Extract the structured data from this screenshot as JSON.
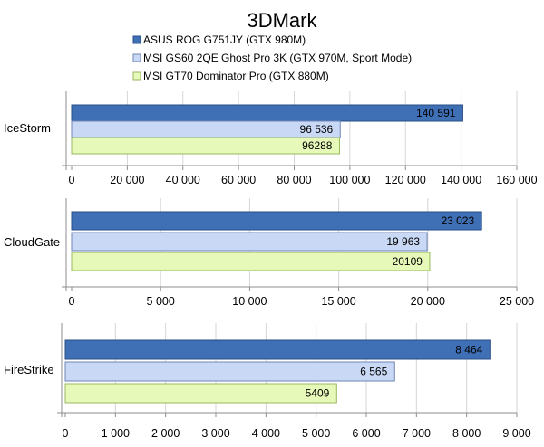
{
  "chart_data": {
    "type": "bar",
    "orientation": "horizontal",
    "title": "3DMark",
    "legend": {
      "placement": "top",
      "entries": [
        {
          "name": "ASUS ROG G751JY (GTX 980M)",
          "color": "#3f6fb5"
        },
        {
          "name": "MSI GS60 2QE Ghost Pro 3K (GTX 970M, Sport Mode)",
          "color": "#c9d9f5"
        },
        {
          "name": "MSI GT70 Dominator Pro (GTX 880M)",
          "color": "#e6f9b8"
        }
      ]
    },
    "grid": true,
    "panels": [
      {
        "category": "IceStorm",
        "xlim": [
          0,
          160000
        ],
        "ticks": [
          0,
          20000,
          40000,
          60000,
          80000,
          100000,
          120000,
          140000,
          160000
        ],
        "tick_labels": [
          "0",
          "20 000",
          "40 000",
          "60 000",
          "80 000",
          "100 000",
          "120 000",
          "140 000",
          "160 000"
        ],
        "values": [
          140591,
          96536,
          96288
        ],
        "value_labels": [
          "140 591",
          "96 536",
          "96288"
        ]
      },
      {
        "category": "CloudGate",
        "xlim": [
          0,
          25000
        ],
        "ticks": [
          0,
          5000,
          10000,
          15000,
          20000,
          25000
        ],
        "tick_labels": [
          "0",
          "5 000",
          "10 000",
          "15 000",
          "20 000",
          "25 000"
        ],
        "values": [
          23023,
          19963,
          20109
        ],
        "value_labels": [
          "23 023",
          "19 963",
          "20109"
        ]
      },
      {
        "category": "FireStrike",
        "xlim": [
          0,
          9000
        ],
        "ticks": [
          0,
          1000,
          2000,
          3000,
          4000,
          5000,
          6000,
          7000,
          8000,
          9000
        ],
        "tick_labels": [
          "0",
          "1 000",
          "2 000",
          "3 000",
          "4 000",
          "5 000",
          "6 000",
          "7 000",
          "8 000",
          "9 000"
        ],
        "values": [
          8464,
          6565,
          5409
        ],
        "value_labels": [
          "8 464",
          "6 565",
          "5409"
        ]
      }
    ]
  }
}
